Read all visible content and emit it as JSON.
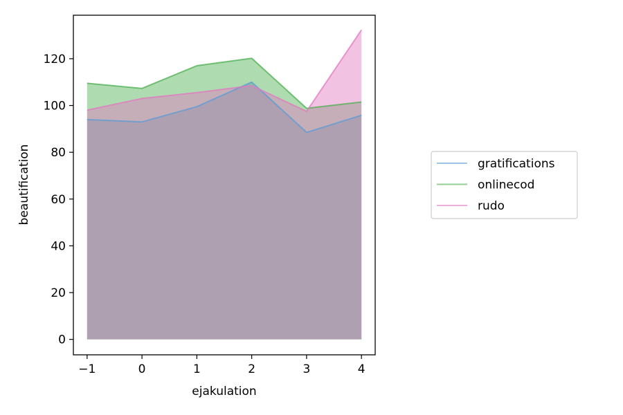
{
  "chart_data": {
    "type": "area",
    "x": [
      -1,
      0,
      1,
      2,
      3,
      4
    ],
    "xticks": [
      -1,
      0,
      1,
      2,
      3,
      4
    ],
    "xtick_labels": [
      "−1",
      "0",
      "1",
      "2",
      "3",
      "4"
    ],
    "yticks": [
      0,
      20,
      40,
      60,
      80,
      100,
      120
    ],
    "xlabel": "ejakulation",
    "ylabel": "beautification",
    "xlim": [
      -1.25,
      4.25
    ],
    "ylim": [
      -6.6,
      138.6
    ],
    "grid": false,
    "legend_position": "right",
    "series": [
      {
        "name": "gratifications",
        "color": "#5b9bd5",
        "values": [
          94,
          93,
          99.5,
          110,
          88.5,
          95.8
        ]
      },
      {
        "name": "onlinecod",
        "color": "#4caf50",
        "values": [
          109.5,
          107.3,
          117,
          120.2,
          98.8,
          101.5
        ]
      },
      {
        "name": "rudo",
        "color": "#e377c2",
        "values": [
          98,
          103,
          105.5,
          108.5,
          97.5,
          132.3
        ]
      }
    ]
  }
}
